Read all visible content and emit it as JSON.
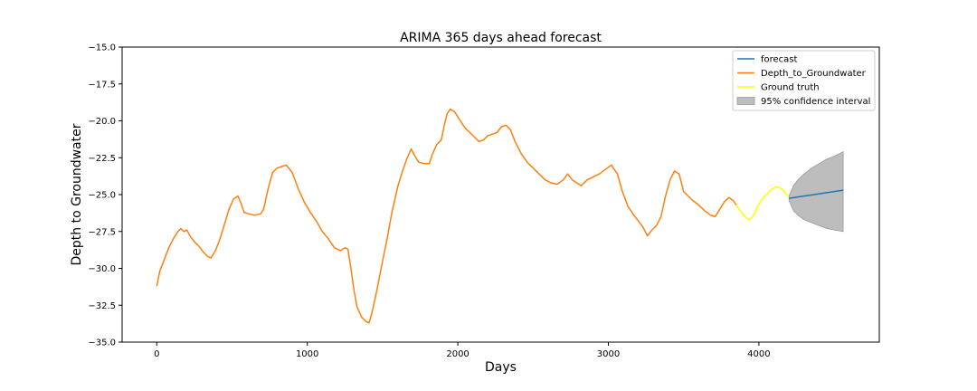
{
  "chart_data": {
    "type": "line",
    "title": "ARIMA 365 days ahead forecast",
    "xlabel": "Days",
    "ylabel": "Depth to Groundwater",
    "xlim": [
      -230,
      4800
    ],
    "ylim": [
      -35.0,
      -15.0
    ],
    "xticks": [
      0,
      1000,
      2000,
      3000,
      4000
    ],
    "xtick_labels": [
      "0",
      "1000",
      "2000",
      "3000",
      "4000"
    ],
    "yticks": [
      -35.0,
      -32.5,
      -30.0,
      -27.5,
      -25.0,
      -22.5,
      -20.0,
      -17.5,
      -15.0
    ],
    "ytick_labels": [
      "−35.0",
      "−32.5",
      "−30.0",
      "−27.5",
      "−25.0",
      "−22.5",
      "−20.0",
      "−17.5",
      "−15.0"
    ],
    "grid": false,
    "legend_position": "top-right",
    "legend": [
      {
        "label": "forecast",
        "kind": "line",
        "color": "#1f77b4"
      },
      {
        "label": "Depth_to_Groundwater",
        "kind": "line",
        "color": "#ff7f0e"
      },
      {
        "label": "Ground truth",
        "kind": "line",
        "color": "#ffff00"
      },
      {
        "label": "95% confidence interval",
        "kind": "patch",
        "color": "#bdbdbd"
      }
    ],
    "series": [
      {
        "name": "Depth_to_Groundwater",
        "color": "#ff7f0e",
        "points": [
          [
            0,
            -31.2
          ],
          [
            20,
            -30.2
          ],
          [
            50,
            -29.4
          ],
          [
            80,
            -28.6
          ],
          [
            110,
            -28.0
          ],
          [
            140,
            -27.5
          ],
          [
            160,
            -27.3
          ],
          [
            180,
            -27.5
          ],
          [
            200,
            -27.4
          ],
          [
            220,
            -27.8
          ],
          [
            250,
            -28.2
          ],
          [
            280,
            -28.5
          ],
          [
            310,
            -28.9
          ],
          [
            340,
            -29.2
          ],
          [
            360,
            -29.3
          ],
          [
            390,
            -28.8
          ],
          [
            420,
            -28.0
          ],
          [
            450,
            -27.0
          ],
          [
            480,
            -26.0
          ],
          [
            510,
            -25.3
          ],
          [
            540,
            -25.1
          ],
          [
            560,
            -25.6
          ],
          [
            580,
            -26.2
          ],
          [
            610,
            -26.3
          ],
          [
            650,
            -26.4
          ],
          [
            690,
            -26.3
          ],
          [
            710,
            -26.0
          ],
          [
            740,
            -24.6
          ],
          [
            770,
            -23.5
          ],
          [
            800,
            -23.2
          ],
          [
            830,
            -23.1
          ],
          [
            860,
            -23.0
          ],
          [
            900,
            -23.5
          ],
          [
            940,
            -24.6
          ],
          [
            980,
            -25.5
          ],
          [
            1020,
            -26.2
          ],
          [
            1060,
            -26.8
          ],
          [
            1100,
            -27.5
          ],
          [
            1140,
            -28.0
          ],
          [
            1180,
            -28.6
          ],
          [
            1220,
            -28.8
          ],
          [
            1250,
            -28.6
          ],
          [
            1270,
            -28.7
          ],
          [
            1290,
            -30.0
          ],
          [
            1310,
            -31.5
          ],
          [
            1330,
            -32.6
          ],
          [
            1360,
            -33.3
          ],
          [
            1390,
            -33.6
          ],
          [
            1410,
            -33.7
          ],
          [
            1430,
            -33.0
          ],
          [
            1460,
            -31.6
          ],
          [
            1500,
            -29.5
          ],
          [
            1530,
            -28.0
          ],
          [
            1560,
            -26.3
          ],
          [
            1600,
            -24.5
          ],
          [
            1630,
            -23.5
          ],
          [
            1660,
            -22.6
          ],
          [
            1690,
            -21.9
          ],
          [
            1710,
            -22.3
          ],
          [
            1740,
            -22.8
          ],
          [
            1780,
            -22.9
          ],
          [
            1810,
            -22.9
          ],
          [
            1830,
            -22.3
          ],
          [
            1860,
            -21.6
          ],
          [
            1890,
            -21.3
          ],
          [
            1910,
            -20.3
          ],
          [
            1930,
            -19.5
          ],
          [
            1950,
            -19.2
          ],
          [
            1980,
            -19.4
          ],
          [
            2010,
            -19.9
          ],
          [
            2050,
            -20.5
          ],
          [
            2080,
            -20.8
          ],
          [
            2110,
            -21.1
          ],
          [
            2140,
            -21.4
          ],
          [
            2170,
            -21.3
          ],
          [
            2200,
            -21.0
          ],
          [
            2230,
            -20.9
          ],
          [
            2260,
            -20.8
          ],
          [
            2290,
            -20.4
          ],
          [
            2320,
            -20.3
          ],
          [
            2350,
            -20.6
          ],
          [
            2380,
            -21.4
          ],
          [
            2420,
            -22.2
          ],
          [
            2460,
            -22.8
          ],
          [
            2500,
            -23.2
          ],
          [
            2540,
            -23.6
          ],
          [
            2580,
            -24.0
          ],
          [
            2620,
            -24.2
          ],
          [
            2660,
            -24.3
          ],
          [
            2700,
            -24.0
          ],
          [
            2730,
            -23.6
          ],
          [
            2760,
            -24.0
          ],
          [
            2790,
            -24.2
          ],
          [
            2820,
            -24.4
          ],
          [
            2860,
            -24.0
          ],
          [
            2900,
            -23.8
          ],
          [
            2940,
            -23.6
          ],
          [
            2980,
            -23.3
          ],
          [
            3020,
            -23.0
          ],
          [
            3060,
            -23.6
          ],
          [
            3090,
            -24.7
          ],
          [
            3130,
            -25.8
          ],
          [
            3170,
            -26.4
          ],
          [
            3200,
            -26.8
          ],
          [
            3230,
            -27.2
          ],
          [
            3260,
            -27.8
          ],
          [
            3290,
            -27.4
          ],
          [
            3320,
            -27.1
          ],
          [
            3350,
            -26.5
          ],
          [
            3380,
            -25.1
          ],
          [
            3410,
            -24.0
          ],
          [
            3440,
            -23.4
          ],
          [
            3470,
            -23.6
          ],
          [
            3500,
            -24.8
          ],
          [
            3530,
            -25.1
          ],
          [
            3560,
            -25.4
          ],
          [
            3600,
            -25.7
          ],
          [
            3640,
            -26.1
          ],
          [
            3680,
            -26.4
          ],
          [
            3710,
            -26.5
          ],
          [
            3740,
            -26.0
          ],
          [
            3770,
            -25.5
          ],
          [
            3800,
            -25.2
          ],
          [
            3830,
            -25.4
          ],
          [
            3850,
            -25.7
          ]
        ]
      },
      {
        "name": "Ground truth",
        "color": "#ffff00",
        "points": [
          [
            3850,
            -25.7
          ],
          [
            3870,
            -26.0
          ],
          [
            3890,
            -26.3
          ],
          [
            3910,
            -26.5
          ],
          [
            3930,
            -26.7
          ],
          [
            3950,
            -26.6
          ],
          [
            3970,
            -26.3
          ],
          [
            3990,
            -25.8
          ],
          [
            4010,
            -25.5
          ],
          [
            4030,
            -25.2
          ],
          [
            4050,
            -25.0
          ],
          [
            4070,
            -24.8
          ],
          [
            4090,
            -24.6
          ],
          [
            4110,
            -24.5
          ],
          [
            4130,
            -24.5
          ],
          [
            4150,
            -24.6
          ],
          [
            4170,
            -24.8
          ],
          [
            4195,
            -25.1
          ]
        ]
      },
      {
        "name": "forecast",
        "color": "#1f77b4",
        "points": [
          [
            4200,
            -25.25
          ],
          [
            4560,
            -24.7
          ]
        ]
      }
    ],
    "confidence_interval": {
      "name": "95% confidence interval",
      "color": "#bdbdbd",
      "x": [
        4200,
        4230,
        4260,
        4300,
        4350,
        4400,
        4450,
        4500,
        4560
      ],
      "upper": [
        -25.1,
        -24.4,
        -24.0,
        -23.6,
        -23.2,
        -22.9,
        -22.6,
        -22.4,
        -22.1
      ],
      "lower": [
        -25.4,
        -26.1,
        -26.4,
        -26.7,
        -26.9,
        -27.1,
        -27.3,
        -27.4,
        -27.5
      ]
    }
  }
}
